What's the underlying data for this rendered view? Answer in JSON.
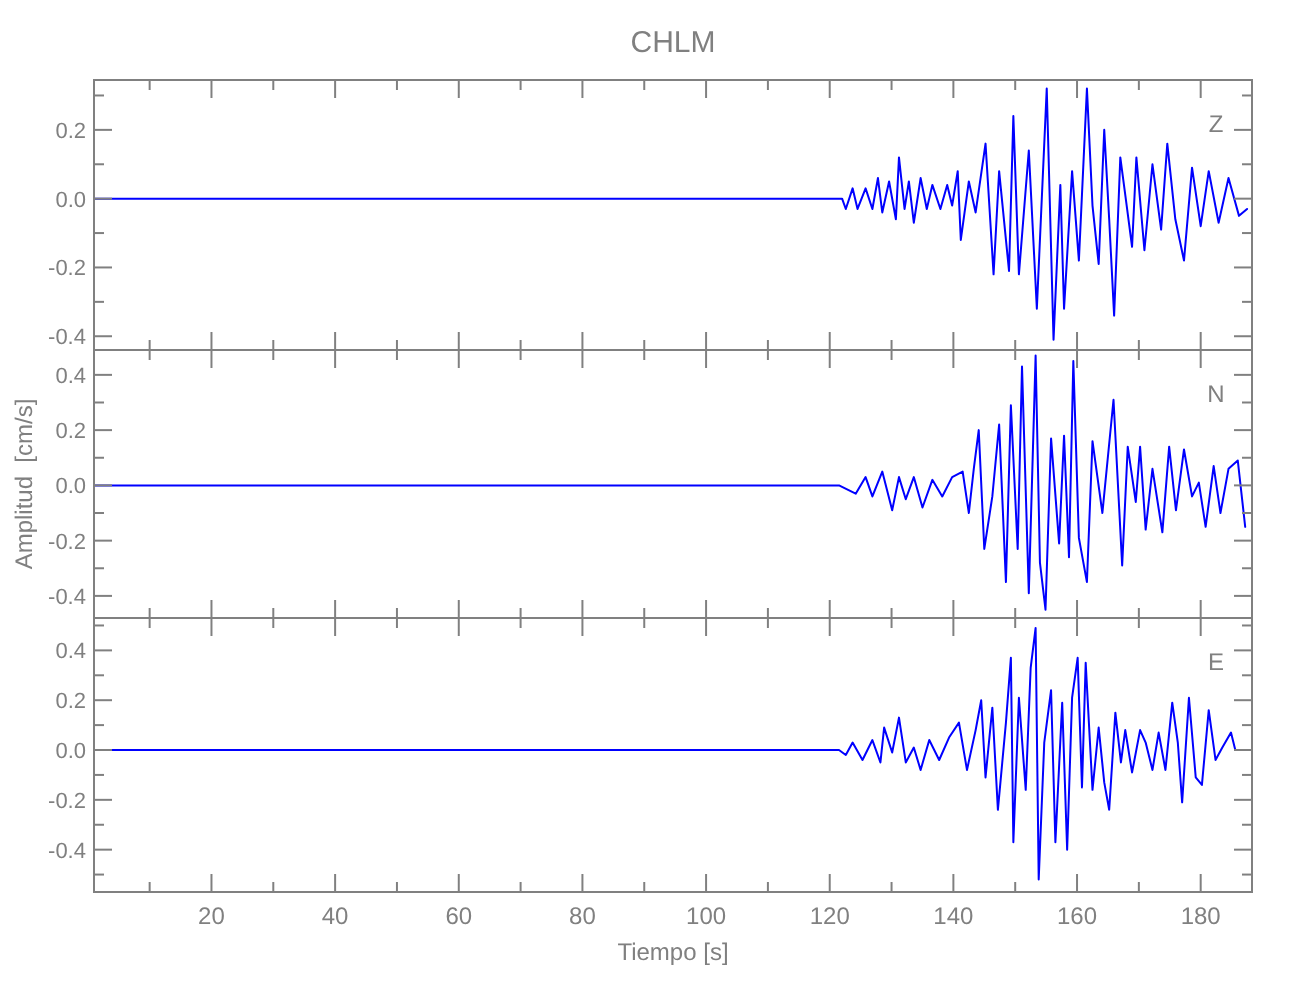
{
  "chart_data": [
    {
      "type": "line",
      "title": "CHLM",
      "annotations": [
        "Z"
      ],
      "tick_labels": "y",
      "x": [
        1,
        122.0,
        122.6,
        123.7,
        124.5,
        125.8,
        126.9,
        127.8,
        128.5,
        129.6,
        130.7,
        131.2,
        132.1,
        132.8,
        133.6,
        134.7,
        135.7,
        136.6,
        137.9,
        139,
        139.8,
        140.7,
        141.2,
        142.5,
        143.6,
        145.2,
        146.5,
        147.4,
        149,
        149.7,
        150.6,
        152.2,
        153.5,
        155.1,
        156.2,
        157.3,
        157.9,
        159.2,
        160.3,
        161.6,
        162.5,
        163.5,
        164.4,
        165.2,
        166,
        167,
        168.1,
        168.9,
        169.6,
        170.9,
        172.2,
        173.6,
        174.6,
        175.9,
        177.3,
        178.6,
        180,
        181.3,
        182.9,
        184.5,
        186.2,
        187.5
      ],
      "series": [
        {
          "color": "#0000ff",
          "values": [
            0,
            0,
            -0.03,
            0.03,
            -0.03,
            0.03,
            -0.03,
            0.06,
            -0.04,
            0.05,
            -0.06,
            0.12,
            -0.03,
            0.05,
            -0.07,
            0.06,
            -0.03,
            0.04,
            -0.03,
            0.04,
            -0.02,
            0.08,
            -0.12,
            0.05,
            -0.04,
            0.16,
            -0.22,
            0.08,
            -0.21,
            0.24,
            -0.22,
            0.14,
            -0.32,
            0.32,
            -0.41,
            0.04,
            -0.32,
            0.08,
            -0.18,
            0.32,
            -0.02,
            -0.19,
            0.2,
            -0.06,
            -0.34,
            0.12,
            -0.03,
            -0.14,
            0.12,
            -0.15,
            0.1,
            -0.09,
            0.16,
            -0.06,
            -0.18,
            0.09,
            -0.08,
            0.08,
            -0.07,
            0.06,
            -0.05,
            -0.03
          ]
        }
      ],
      "xlim": [
        1,
        188.3
      ],
      "xticks": [
        {
          "value": 10,
          "label": null
        },
        {
          "value": 20,
          "label": null
        },
        {
          "value": 30,
          "label": null
        },
        {
          "value": 40,
          "label": null
        },
        {
          "value": 50,
          "label": null
        },
        {
          "value": 60,
          "label": null
        },
        {
          "value": 70,
          "label": null
        },
        {
          "value": 80,
          "label": null
        },
        {
          "value": 90,
          "label": null
        },
        {
          "value": 100,
          "label": null
        },
        {
          "value": 110,
          "label": null
        },
        {
          "value": 120,
          "label": null
        },
        {
          "value": 130,
          "label": null
        },
        {
          "value": 140,
          "label": null
        },
        {
          "value": 150,
          "label": null
        },
        {
          "value": 160,
          "label": null
        },
        {
          "value": 170,
          "label": null
        },
        {
          "value": 180,
          "label": null
        }
      ],
      "ylim": [
        -0.44,
        0.345
      ],
      "yticks": [
        {
          "value": -0.4,
          "label": "-0.4"
        },
        {
          "value": -0.3,
          "label": null
        },
        {
          "value": -0.2,
          "label": "-0.2"
        },
        {
          "value": -0.1,
          "label": null
        },
        {
          "value": 0,
          "label": "0.0"
        },
        {
          "value": 0.1,
          "label": null
        },
        {
          "value": 0.2,
          "label": "0.2"
        },
        {
          "value": 0.3,
          "label": null
        }
      ]
    },
    {
      "type": "line",
      "ylabel": "Amplitud  [cm/s]",
      "annotations": [
        "N"
      ],
      "tick_labels": "y",
      "x": [
        1,
        121.5,
        124.2,
        125.8,
        126.9,
        128.5,
        130.1,
        131.2,
        132.3,
        133.6,
        135,
        136.6,
        138.2,
        139.8,
        141.5,
        142.5,
        143.3,
        144.1,
        145,
        146.3,
        147.4,
        148.5,
        149.3,
        150.4,
        151.1,
        152.2,
        153.3,
        154,
        154.9,
        155.8,
        157.1,
        157.9,
        158.7,
        159.4,
        160.3,
        161.6,
        162.5,
        164.1,
        165.9,
        167.3,
        168.2,
        169.5,
        170.2,
        171.1,
        172.2,
        173.8,
        174.9,
        176,
        177.3,
        178.6,
        179.7,
        180.8,
        182.1,
        183.2,
        184.5,
        186,
        187.2
      ],
      "series": [
        {
          "color": "#0000ff",
          "values": [
            0,
            0,
            -0.03,
            0.03,
            -0.04,
            0.05,
            -0.09,
            0.03,
            -0.05,
            0.03,
            -0.08,
            0.02,
            -0.04,
            0.03,
            0.05,
            -0.1,
            0.06,
            0.2,
            -0.23,
            -0.04,
            0.22,
            -0.35,
            0.29,
            -0.23,
            0.43,
            -0.39,
            0.47,
            -0.28,
            -0.45,
            0.17,
            -0.21,
            0.18,
            -0.26,
            0.45,
            -0.19,
            -0.35,
            0.16,
            -0.1,
            0.31,
            -0.29,
            0.14,
            -0.06,
            0.14,
            -0.16,
            0.06,
            -0.17,
            0.14,
            -0.09,
            0.13,
            -0.04,
            0.01,
            -0.15,
            0.07,
            -0.1,
            0.06,
            0.09,
            -0.15
          ]
        }
      ],
      "xlim": [
        1,
        188.3
      ],
      "xticks": [
        {
          "value": 10,
          "label": null
        },
        {
          "value": 20,
          "label": null
        },
        {
          "value": 30,
          "label": null
        },
        {
          "value": 40,
          "label": null
        },
        {
          "value": 50,
          "label": null
        },
        {
          "value": 60,
          "label": null
        },
        {
          "value": 70,
          "label": null
        },
        {
          "value": 80,
          "label": null
        },
        {
          "value": 90,
          "label": null
        },
        {
          "value": 100,
          "label": null
        },
        {
          "value": 110,
          "label": null
        },
        {
          "value": 120,
          "label": null
        },
        {
          "value": 130,
          "label": null
        },
        {
          "value": 140,
          "label": null
        },
        {
          "value": 150,
          "label": null
        },
        {
          "value": 160,
          "label": null
        },
        {
          "value": 170,
          "label": null
        },
        {
          "value": 180,
          "label": null
        }
      ],
      "ylim": [
        -0.48,
        0.49
      ],
      "yticks": [
        {
          "value": -0.4,
          "label": "-0.4"
        },
        {
          "value": -0.3,
          "label": null
        },
        {
          "value": -0.2,
          "label": "-0.2"
        },
        {
          "value": -0.1,
          "label": null
        },
        {
          "value": 0,
          "label": "0.0"
        },
        {
          "value": 0.1,
          "label": null
        },
        {
          "value": 0.2,
          "label": "0.2"
        },
        {
          "value": 0.3,
          "label": null
        },
        {
          "value": 0.4,
          "label": "0.4"
        }
      ]
    },
    {
      "type": "line",
      "xlabel": "Tiempo  [s]",
      "annotations": [
        "E"
      ],
      "x": [
        1,
        121.5,
        122.6,
        123.7,
        125.3,
        126.9,
        128.2,
        128.8,
        130.1,
        131.2,
        132.3,
        133.6,
        134.7,
        136.1,
        137.7,
        139.3,
        140.9,
        142.2,
        143.6,
        144.5,
        145.2,
        146.3,
        147.2,
        148.5,
        149.3,
        149.7,
        150.6,
        151.7,
        152.5,
        153.3,
        153.8,
        154.7,
        155.8,
        156.5,
        157.6,
        158.4,
        159.2,
        160.1,
        160.8,
        161.4,
        162.5,
        163.5,
        164.4,
        165.2,
        166.2,
        167.1,
        167.8,
        168.9,
        170.2,
        171.1,
        172.2,
        173.2,
        174.3,
        175.4,
        176.3,
        177,
        178.1,
        179.2,
        180.2,
        181.3,
        182.4,
        183.5,
        184.9,
        185.6
      ],
      "series": [
        {
          "color": "#0000ff",
          "values": [
            0,
            0,
            -0.02,
            0.03,
            -0.04,
            0.04,
            -0.05,
            0.09,
            -0.01,
            0.13,
            -0.05,
            0.01,
            -0.08,
            0.04,
            -0.04,
            0.05,
            0.11,
            -0.08,
            0.08,
            0.2,
            -0.11,
            0.17,
            -0.24,
            0.11,
            0.37,
            -0.37,
            0.21,
            -0.16,
            0.33,
            0.49,
            -0.52,
            0.03,
            0.24,
            -0.37,
            0.19,
            -0.4,
            0.21,
            0.37,
            -0.15,
            0.35,
            -0.16,
            0.09,
            -0.13,
            -0.24,
            0.15,
            -0.05,
            0.08,
            -0.09,
            0.08,
            0.03,
            -0.08,
            0.07,
            -0.08,
            0.19,
            0.03,
            -0.21,
            0.21,
            -0.11,
            -0.14,
            0.16,
            -0.04,
            0.01,
            0.07,
            0
          ]
        }
      ],
      "xlim": [
        1,
        188.3
      ],
      "xticks": [
        {
          "value": 10,
          "label": null
        },
        {
          "value": 20,
          "label": "20"
        },
        {
          "value": 30,
          "label": null
        },
        {
          "value": 40,
          "label": "40"
        },
        {
          "value": 50,
          "label": null
        },
        {
          "value": 60,
          "label": "60"
        },
        {
          "value": 70,
          "label": null
        },
        {
          "value": 80,
          "label": "80"
        },
        {
          "value": 90,
          "label": null
        },
        {
          "value": 100,
          "label": "100"
        },
        {
          "value": 110,
          "label": null
        },
        {
          "value": 120,
          "label": "120"
        },
        {
          "value": 130,
          "label": null
        },
        {
          "value": 140,
          "label": "140"
        },
        {
          "value": 150,
          "label": null
        },
        {
          "value": 160,
          "label": "160"
        },
        {
          "value": 170,
          "label": null
        },
        {
          "value": 180,
          "label": "180"
        }
      ],
      "ylim": [
        -0.57,
        0.53
      ],
      "yticks": [
        {
          "value": -0.5,
          "label": null
        },
        {
          "value": -0.4,
          "label": "-0.4"
        },
        {
          "value": -0.3,
          "label": null
        },
        {
          "value": -0.2,
          "label": "-0.2"
        },
        {
          "value": -0.1,
          "label": null
        },
        {
          "value": 0,
          "label": "0.0"
        },
        {
          "value": 0.1,
          "label": null
        },
        {
          "value": 0.2,
          "label": "0.2"
        },
        {
          "value": 0.3,
          "label": null
        },
        {
          "value": 0.4,
          "label": "0.4"
        },
        {
          "value": 0.5,
          "label": null
        }
      ]
    }
  ]
}
